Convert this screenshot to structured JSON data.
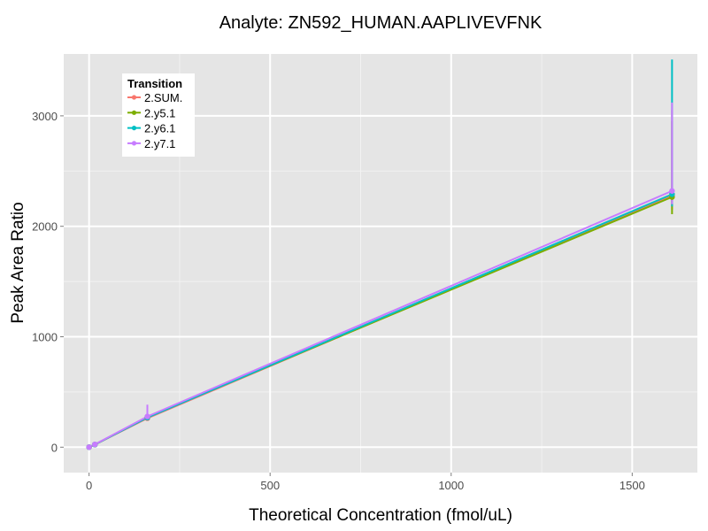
{
  "chart_data": {
    "type": "line",
    "title": "Analyte: ZN592_HUMAN.AAPLIVEVFNK",
    "xlabel": "Theoretical Concentration (fmol/uL)",
    "ylabel": "Peak Area Ratio",
    "xlim": [
      -70,
      1680
    ],
    "ylim": [
      -230,
      3560
    ],
    "x_ticks": [
      0,
      500,
      1000,
      1500
    ],
    "x_tick_labels": [
      "0",
      "500",
      "1000",
      "1500"
    ],
    "y_ticks": [
      0,
      1000,
      2000,
      3000
    ],
    "y_tick_labels": [
      "0",
      "1000",
      "2000",
      "3000"
    ],
    "grid": true,
    "legend": {
      "title": "Transition",
      "position": "top-left"
    },
    "x": [
      0,
      16,
      161,
      1610
    ],
    "series": [
      {
        "name": "2.SUM.",
        "color": "#F8766D",
        "values": [
          0,
          24,
          262,
          2280
        ],
        "error_low": [
          0,
          22,
          240,
          2150
        ],
        "error_high": [
          0,
          26,
          295,
          3050
        ]
      },
      {
        "name": "2.y5.1",
        "color": "#7CAE00",
        "values": [
          0,
          23,
          272,
          2265
        ],
        "error_low": [
          0,
          21,
          245,
          2110
        ],
        "error_high": [
          0,
          25,
          300,
          2950
        ]
      },
      {
        "name": "2.y6.1",
        "color": "#00BFC4",
        "values": [
          0,
          24,
          268,
          2290
        ],
        "error_low": [
          0,
          22,
          245,
          2180
        ],
        "error_high": [
          0,
          26,
          305,
          3510
        ]
      },
      {
        "name": "2.y7.1",
        "color": "#C77CFF",
        "values": [
          0,
          25,
          278,
          2320
        ],
        "error_low": [
          0,
          22,
          245,
          2200
        ],
        "error_high": [
          0,
          28,
          385,
          3120
        ]
      }
    ]
  }
}
